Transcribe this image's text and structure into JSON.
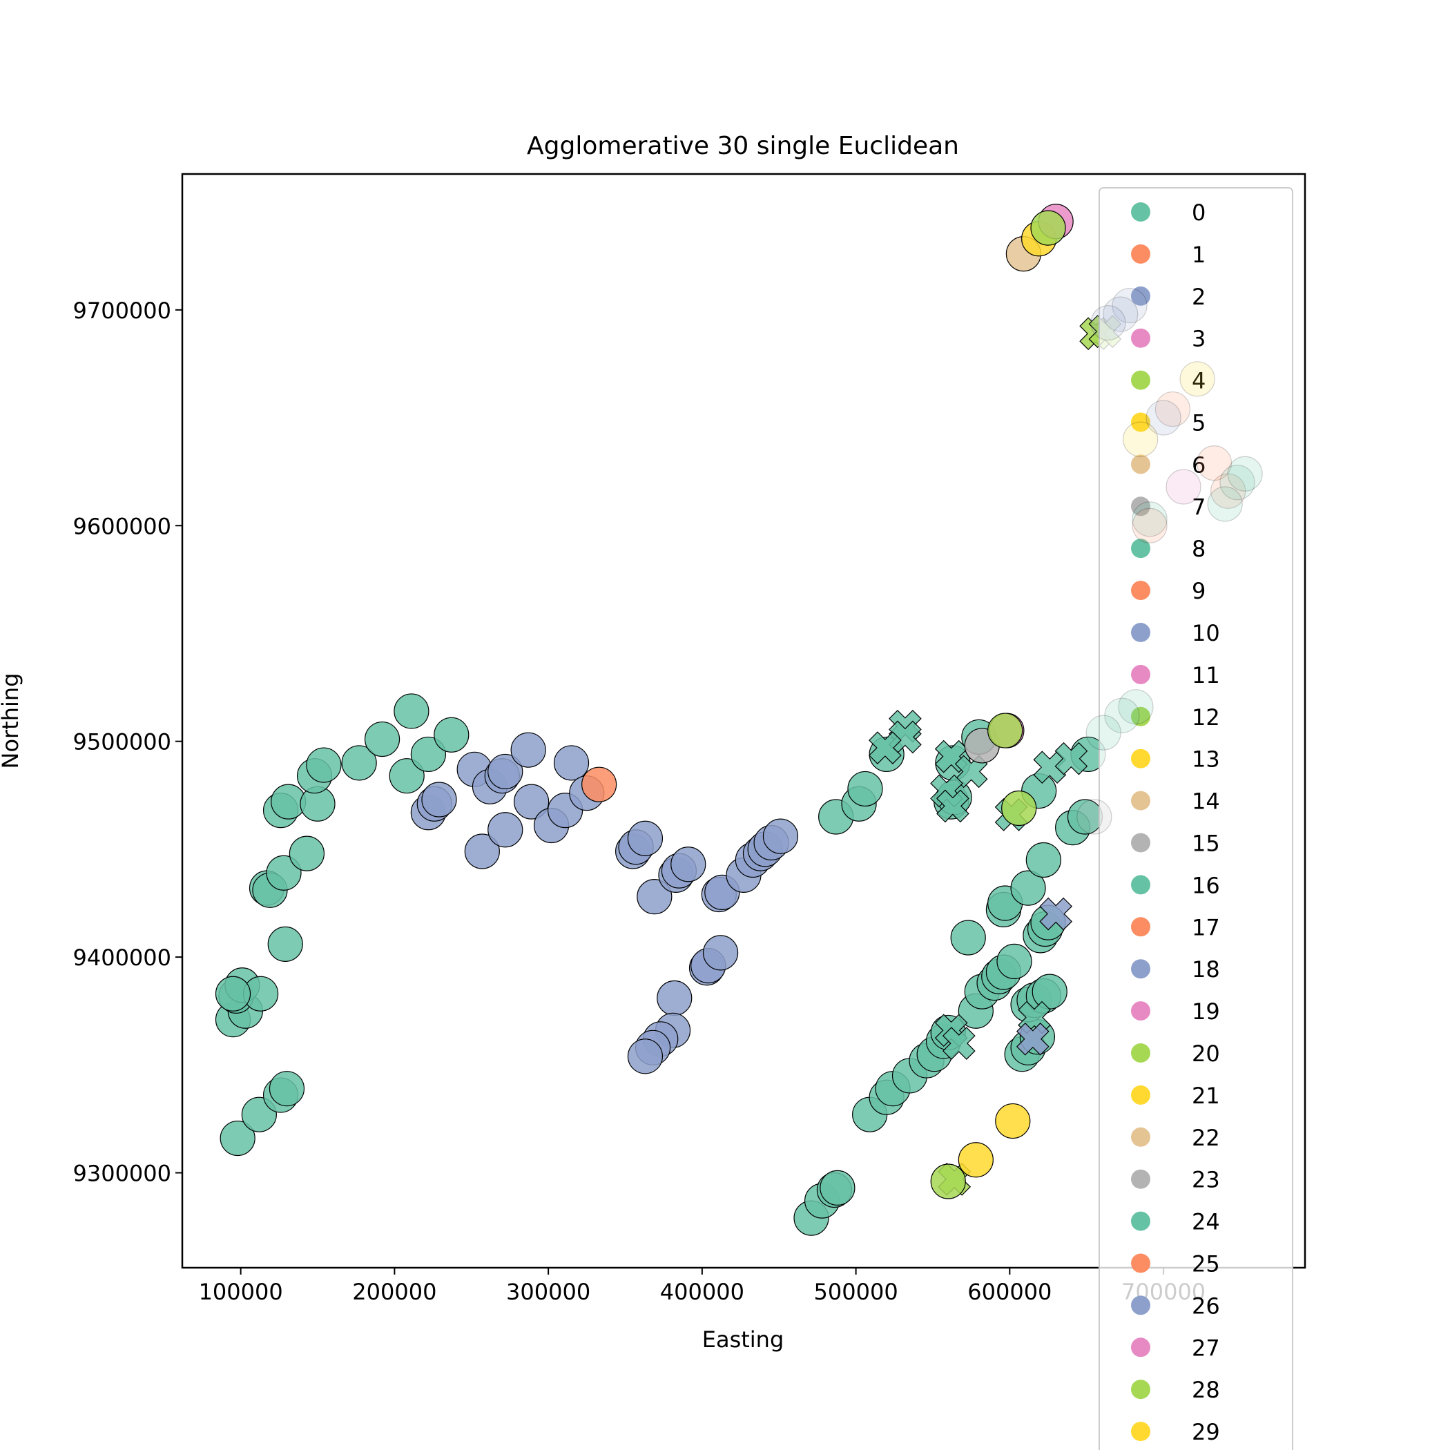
{
  "chart_data": {
    "type": "scatter",
    "title": "Agglomerative 30 single Euclidean",
    "xlabel": "Easting",
    "ylabel": "Northing",
    "xlim": [
      62000,
      792000
    ],
    "ylim": [
      9256000,
      9763000
    ],
    "xticks": [
      100000,
      200000,
      300000,
      400000,
      500000,
      600000,
      700000
    ],
    "yticks": [
      9300000,
      9400000,
      9500000,
      9600000,
      9700000
    ],
    "xtick_labels": [
      "100000",
      "200000",
      "300000",
      "400000",
      "500000",
      "600000",
      "700000"
    ],
    "ytick_labels": [
      "9300000",
      "9400000",
      "9500000",
      "9600000",
      "9700000"
    ],
    "grid": false,
    "legend_position": "right",
    "palette": [
      "#66c2a5",
      "#fc8d62",
      "#8da0cb",
      "#e78ac3",
      "#a6d854",
      "#ffd92f",
      "#e5c494",
      "#b3b3b3"
    ],
    "legend": [
      "0",
      "1",
      "2",
      "3",
      "4",
      "5",
      "6",
      "7",
      "8",
      "9",
      "10",
      "11",
      "12",
      "13",
      "14",
      "15",
      "16",
      "17",
      "18",
      "19",
      "20",
      "21",
      "22",
      "23",
      "24",
      "25",
      "26",
      "27",
      "28",
      "29"
    ],
    "points": [
      [
        98000,
        9316000,
        0,
        "o"
      ],
      [
        112000,
        9327000,
        0,
        "o"
      ],
      [
        126000,
        9336000,
        0,
        "o"
      ],
      [
        130000,
        9339000,
        0,
        "o"
      ],
      [
        95000,
        9371000,
        0,
        "o"
      ],
      [
        103000,
        9375000,
        0,
        "o"
      ],
      [
        97000,
        9382000,
        0,
        "o"
      ],
      [
        101000,
        9387000,
        0,
        "o"
      ],
      [
        113000,
        9383000,
        0,
        "o"
      ],
      [
        95000,
        9383000,
        0,
        "o"
      ],
      [
        129000,
        9406000,
        0,
        "o"
      ],
      [
        117000,
        9432000,
        0,
        "o"
      ],
      [
        119000,
        9431000,
        0,
        "o"
      ],
      [
        128000,
        9439000,
        0,
        "o"
      ],
      [
        143000,
        9448000,
        0,
        "o"
      ],
      [
        126000,
        9468000,
        0,
        "o"
      ],
      [
        131000,
        9472000,
        0,
        "o"
      ],
      [
        150000,
        9471000,
        0,
        "o"
      ],
      [
        148000,
        9484000,
        0,
        "o"
      ],
      [
        154000,
        9489000,
        0,
        "o"
      ],
      [
        177000,
        9490000,
        0,
        "o"
      ],
      [
        192000,
        9501000,
        0,
        "o"
      ],
      [
        208000,
        9484000,
        0,
        "o"
      ],
      [
        211000,
        9514000,
        0,
        "o"
      ],
      [
        222000,
        9494000,
        0,
        "o"
      ],
      [
        237000,
        9503000,
        0,
        "o"
      ],
      [
        222000,
        9467000,
        2,
        "o"
      ],
      [
        226000,
        9471000,
        2,
        "o"
      ],
      [
        229000,
        9473000,
        2,
        "o"
      ],
      [
        252000,
        9487000,
        2,
        "o"
      ],
      [
        257000,
        9449000,
        2,
        "o"
      ],
      [
        262000,
        9479000,
        2,
        "o"
      ],
      [
        270000,
        9484000,
        2,
        "o"
      ],
      [
        272000,
        9486000,
        2,
        "o"
      ],
      [
        272000,
        9459000,
        2,
        "o"
      ],
      [
        287000,
        9496000,
        2,
        "o"
      ],
      [
        289000,
        9472000,
        2,
        "o"
      ],
      [
        302000,
        9461000,
        2,
        "o"
      ],
      [
        311000,
        9468000,
        2,
        "o"
      ],
      [
        315000,
        9490000,
        2,
        "o"
      ],
      [
        325000,
        9476000,
        2,
        "o"
      ],
      [
        333000,
        9480000,
        1,
        "o"
      ],
      [
        355000,
        9449000,
        2,
        "o"
      ],
      [
        357000,
        9451000,
        2,
        "o"
      ],
      [
        363000,
        9455000,
        2,
        "o"
      ],
      [
        369000,
        9428000,
        2,
        "o"
      ],
      [
        383000,
        9438000,
        2,
        "o"
      ],
      [
        385000,
        9440000,
        2,
        "o"
      ],
      [
        391000,
        9443000,
        2,
        "o"
      ],
      [
        411000,
        9429000,
        2,
        "o"
      ],
      [
        413000,
        9430000,
        2,
        "o"
      ],
      [
        427000,
        9438000,
        2,
        "o"
      ],
      [
        433000,
        9445000,
        2,
        "o"
      ],
      [
        438000,
        9448000,
        2,
        "o"
      ],
      [
        441000,
        9450000,
        2,
        "o"
      ],
      [
        445000,
        9453000,
        2,
        "o"
      ],
      [
        451000,
        9456000,
        2,
        "o"
      ],
      [
        403000,
        9395000,
        2,
        "o"
      ],
      [
        404000,
        9396000,
        2,
        "o"
      ],
      [
        412000,
        9402000,
        2,
        "o"
      ],
      [
        382000,
        9381000,
        2,
        "o"
      ],
      [
        381000,
        9366000,
        2,
        "o"
      ],
      [
        373000,
        9362000,
        2,
        "o"
      ],
      [
        368000,
        9358000,
        2,
        "o"
      ],
      [
        363000,
        9354000,
        2,
        "o"
      ],
      [
        471000,
        9279000,
        0,
        "o"
      ],
      [
        478000,
        9287000,
        0,
        "o"
      ],
      [
        486000,
        9292000,
        0,
        "o"
      ],
      [
        488000,
        9293000,
        0,
        "o"
      ],
      [
        509000,
        9327000,
        0,
        "o"
      ],
      [
        520000,
        9335000,
        0,
        "o"
      ],
      [
        524000,
        9339000,
        0,
        "o"
      ],
      [
        535000,
        9345000,
        0,
        "o"
      ],
      [
        546000,
        9352000,
        0,
        "o"
      ],
      [
        551000,
        9355000,
        0,
        "o"
      ],
      [
        557000,
        9361000,
        0,
        "o"
      ],
      [
        560000,
        9365000,
        0,
        "o"
      ],
      [
        578000,
        9375000,
        0,
        "o"
      ],
      [
        582000,
        9384000,
        0,
        "o"
      ],
      [
        590000,
        9388000,
        0,
        "o"
      ],
      [
        593000,
        9391000,
        0,
        "o"
      ],
      [
        596000,
        9393000,
        0,
        "o"
      ],
      [
        603000,
        9398000,
        0,
        "o"
      ],
      [
        573000,
        9409000,
        0,
        "o"
      ],
      [
        596000,
        9422000,
        0,
        "o"
      ],
      [
        597000,
        9425000,
        0,
        "o"
      ],
      [
        612000,
        9432000,
        0,
        "o"
      ],
      [
        622000,
        9445000,
        0,
        "o"
      ],
      [
        608000,
        9355000,
        0,
        "o"
      ],
      [
        612000,
        9358000,
        0,
        "o"
      ],
      [
        618000,
        9363000,
        0,
        "o"
      ],
      [
        612000,
        9378000,
        0,
        "o"
      ],
      [
        616000,
        9380000,
        0,
        "o"
      ],
      [
        622000,
        9382000,
        0,
        "o"
      ],
      [
        626000,
        9384000,
        0,
        "o"
      ],
      [
        620000,
        9410000,
        0,
        "o"
      ],
      [
        623000,
        9413000,
        0,
        "o"
      ],
      [
        625000,
        9416000,
        0,
        "o"
      ],
      [
        487000,
        9465000,
        0,
        "o"
      ],
      [
        502000,
        9471000,
        0,
        "o"
      ],
      [
        506000,
        9478000,
        0,
        "o"
      ],
      [
        520000,
        9494000,
        0,
        "o"
      ],
      [
        562000,
        9472000,
        0,
        "o"
      ],
      [
        564000,
        9474000,
        0,
        "o"
      ],
      [
        563000,
        9490000,
        0,
        "o"
      ],
      [
        580000,
        9502000,
        0,
        "o"
      ],
      [
        619000,
        9477000,
        0,
        "o"
      ],
      [
        641000,
        9460000,
        0,
        "o"
      ],
      [
        649000,
        9465000,
        0,
        "o"
      ],
      [
        651000,
        9494000,
        0,
        "o"
      ],
      [
        532000,
        9507000,
        0,
        "x"
      ],
      [
        532000,
        9502000,
        0,
        "x"
      ],
      [
        519000,
        9497000,
        0,
        "x"
      ],
      [
        562000,
        9493000,
        0,
        "x"
      ],
      [
        575000,
        9486000,
        0,
        "x"
      ],
      [
        559000,
        9477000,
        0,
        "x"
      ],
      [
        563000,
        9470000,
        0,
        "x"
      ],
      [
        601000,
        9466000,
        0,
        "x"
      ],
      [
        626000,
        9488000,
        0,
        "x"
      ],
      [
        640000,
        9492000,
        0,
        "x"
      ],
      [
        562000,
        9366000,
        0,
        "x"
      ],
      [
        567000,
        9360000,
        0,
        "x"
      ],
      [
        616000,
        9372000,
        0,
        "x"
      ],
      [
        564000,
        9297000,
        4,
        "x"
      ],
      [
        582000,
        9498000,
        7,
        "o"
      ],
      [
        598000,
        9505000,
        3,
        "o"
      ],
      [
        597000,
        9505000,
        4,
        "o"
      ],
      [
        606000,
        9469000,
        4,
        "o"
      ],
      [
        560000,
        9296000,
        4,
        "o"
      ],
      [
        578000,
        9306000,
        5,
        "o"
      ],
      [
        602000,
        9324000,
        5,
        "o"
      ],
      [
        615000,
        9362000,
        2,
        "x"
      ],
      [
        630000,
        9420000,
        2,
        "x"
      ],
      [
        609000,
        9726000,
        6,
        "o"
      ],
      [
        619000,
        9733000,
        5,
        "o"
      ],
      [
        630000,
        9741000,
        3,
        "o"
      ],
      [
        625000,
        9738000,
        4,
        "o"
      ],
      [
        656000,
        9689000,
        4,
        "x"
      ],
      [
        662000,
        9690000,
        4,
        "x"
      ]
    ],
    "faded_points": [
      [
        678000,
        9702000,
        2
      ],
      [
        672000,
        9698000,
        2
      ],
      [
        664000,
        9694000,
        2
      ],
      [
        722000,
        9668000,
        5
      ],
      [
        706000,
        9654000,
        1
      ],
      [
        700000,
        9650000,
        2
      ],
      [
        685000,
        9640000,
        5
      ],
      [
        733000,
        9629000,
        1
      ],
      [
        713000,
        9618000,
        3
      ],
      [
        742000,
        9616000,
        1
      ],
      [
        748000,
        9620000,
        0
      ],
      [
        753000,
        9624000,
        0
      ],
      [
        740000,
        9610000,
        0
      ],
      [
        691000,
        9603000,
        0
      ],
      [
        691000,
        9600000,
        1
      ],
      [
        682000,
        9516000,
        0
      ],
      [
        673000,
        9512000,
        0
      ],
      [
        661000,
        9504000,
        0
      ],
      [
        655000,
        9465000,
        7
      ]
    ]
  }
}
